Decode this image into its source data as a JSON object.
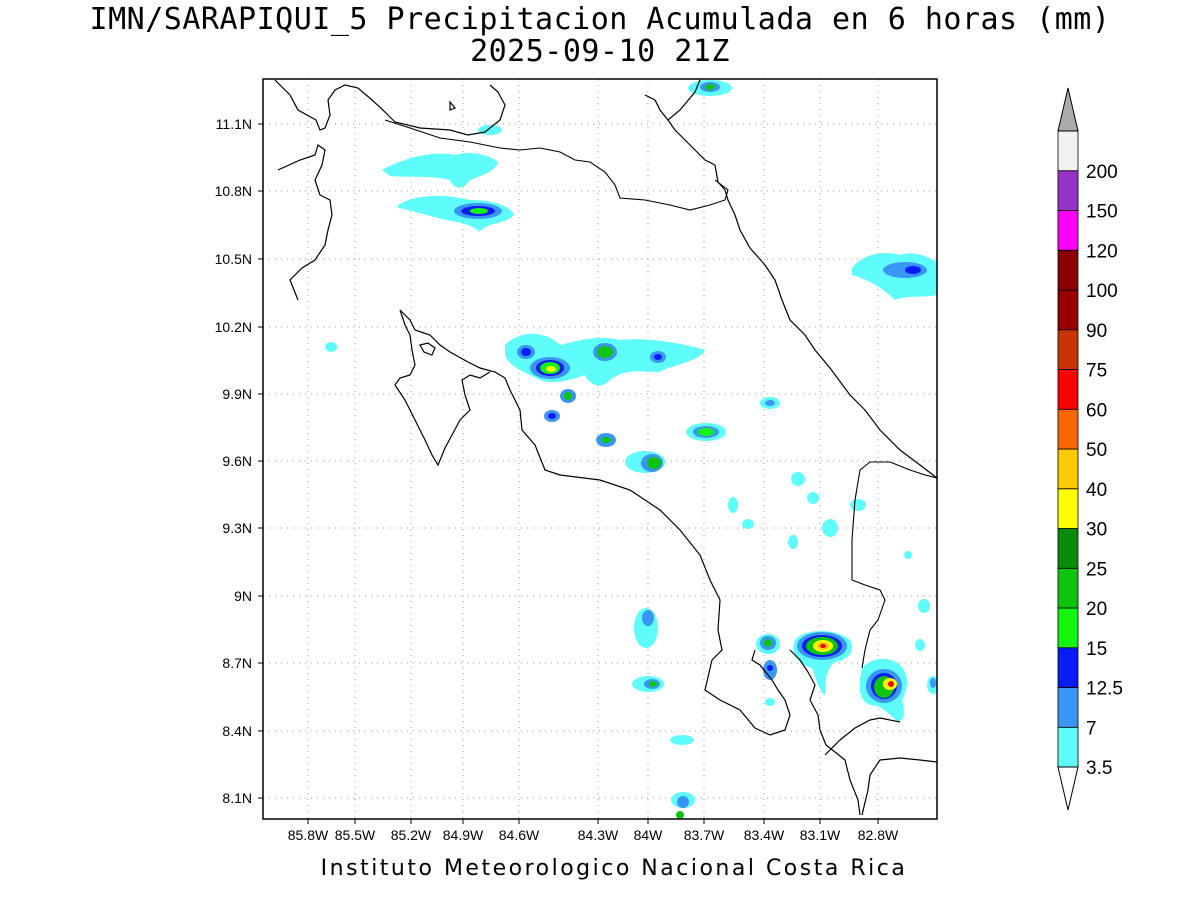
{
  "title_line1": "IMN/SARAPIQUI_5 Precipitacion Acumulada en 6 horas (mm)",
  "title_line2": "2025-09-10 21Z",
  "footer": "Instituto Meteorologico Nacional Costa Rica",
  "map": {
    "lon_range": [
      -86.03,
      -82.47
    ],
    "lat_range": [
      8.0,
      11.3
    ],
    "x_ticks": [
      "85.8W",
      "85.5W",
      "85.2W",
      "84.9W",
      "84.6W",
      "84.3W",
      "84W",
      "83.7W",
      "83.4W",
      "83.1W",
      "82.8W"
    ],
    "y_ticks": [
      "11.1N",
      "10.8N",
      "10.5N",
      "10.2N",
      "9.9N",
      "9.6N",
      "9.3N",
      "9N",
      "8.7N",
      "8.4N",
      "8.1N"
    ]
  },
  "legend": {
    "levels": [
      "3.5",
      "7",
      "12.5",
      "15",
      "20",
      "25",
      "30",
      "40",
      "50",
      "60",
      "75",
      "90",
      "100",
      "120",
      "150",
      "200"
    ],
    "colors": [
      "#5ffcfc",
      "#3a96f5",
      "#0a1cf5",
      "#12f50f",
      "#0fc40f",
      "#0a8c0a",
      "#ffff00",
      "#fbcb00",
      "#fc6600",
      "#fc0000",
      "#c83200",
      "#960000",
      "#8b0000",
      "#fc00fc",
      "#9632c8",
      "#f2f2f2",
      "#aaaaaa"
    ]
  }
}
